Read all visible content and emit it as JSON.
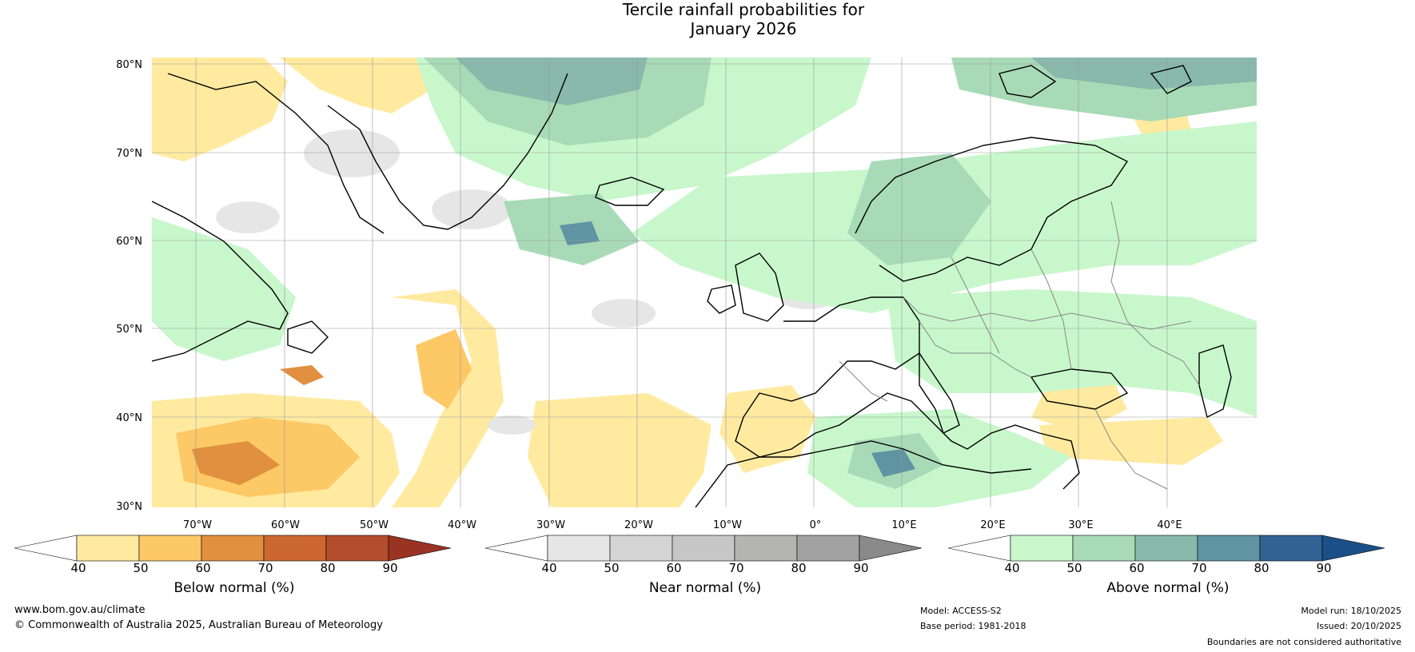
{
  "title": {
    "line1": "Tercile rainfall probabilities for",
    "line2": "January 2026"
  },
  "map": {
    "lat_labels": [
      "80°N",
      "70°N",
      "60°N",
      "50°N",
      "40°N",
      "30°N"
    ],
    "lon_labels": [
      "70°W",
      "60°W",
      "50°W",
      "40°W",
      "30°W",
      "20°W",
      "10°W",
      "0°",
      "10°E",
      "20°E",
      "30°E",
      "40°E"
    ]
  },
  "colorbars": [
    {
      "title": "Below normal (%)",
      "ticks": [
        "40",
        "50",
        "60",
        "70",
        "80",
        "90"
      ],
      "colors": [
        "#ffffff",
        "#ffeaa0",
        "#fdc866",
        "#e0903f",
        "#cc6633",
        "#b34d2b",
        "#993322"
      ]
    },
    {
      "title": "Near normal (%)",
      "ticks": [
        "40",
        "50",
        "60",
        "70",
        "80",
        "90"
      ],
      "colors": [
        "#ffffff",
        "#e6e6e6",
        "#d4d4d4",
        "#c6c6c6",
        "#b4b5b2",
        "#a2a2a2",
        "#8a8a8a"
      ]
    },
    {
      "title": "Above normal (%)",
      "ticks": [
        "40",
        "50",
        "60",
        "70",
        "80",
        "90"
      ],
      "colors": [
        "#ffffff",
        "#c8f7cc",
        "#a8dab7",
        "#88b9ab",
        "#5f94a2",
        "#316293",
        "#1b4f87"
      ]
    }
  ],
  "footer": {
    "website": "www.bom.gov.au/climate",
    "copyright": "© Commonwealth of Australia 2025, Australian Bureau of Meteorology",
    "model": "Model: ACCESS-S2",
    "base_period": "Base period: 1981-2018",
    "model_run": "Model run: 18/10/2025",
    "issued": "Issued: 20/10/2025",
    "disclaimer": "Boundaries are not considered authoritative"
  }
}
